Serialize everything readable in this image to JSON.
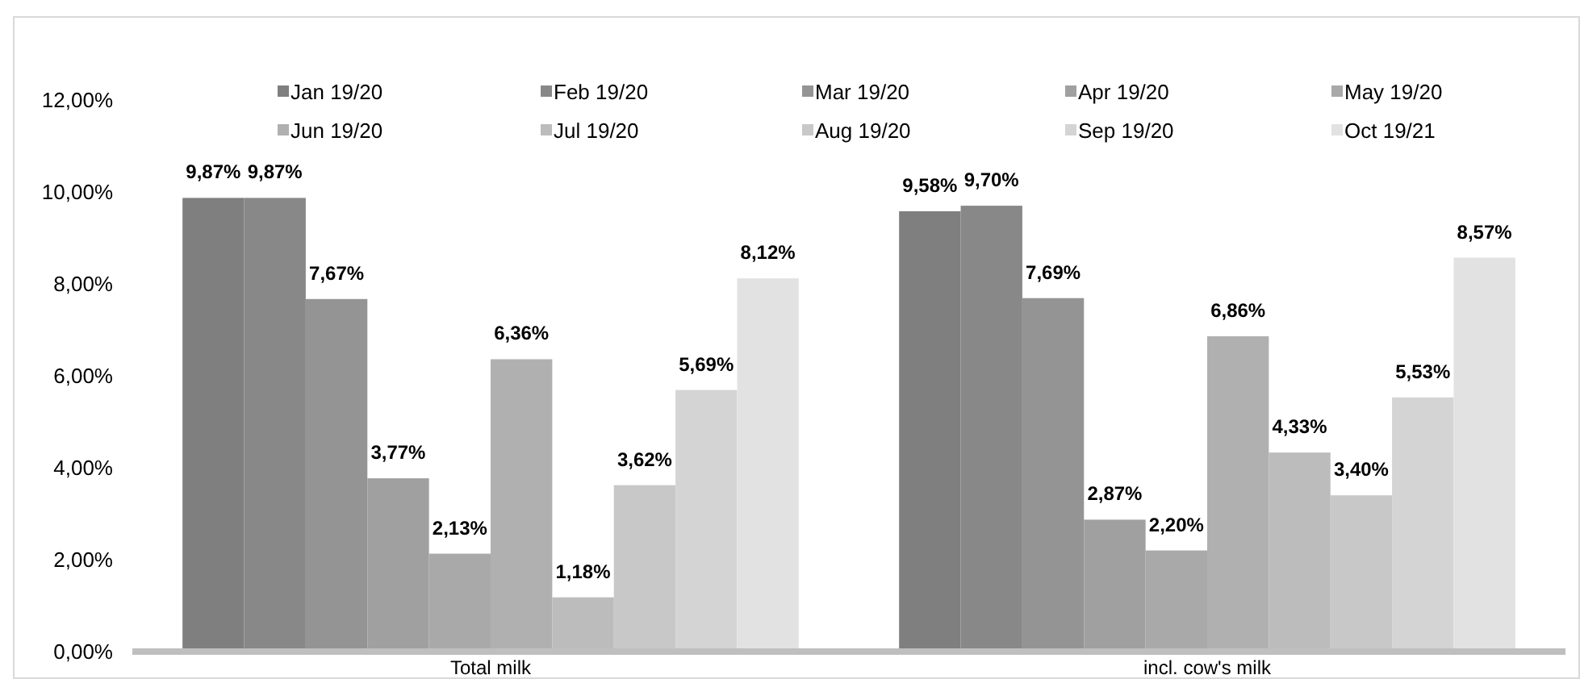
{
  "chart_data": {
    "type": "bar",
    "categories": [
      "Total milk",
      "incl. cow's milk"
    ],
    "series": [
      {
        "name": "Jan 19/20",
        "color": "#7f7f7f",
        "values": [
          9.87,
          9.58
        ],
        "value_labels": [
          "9,87%",
          "9,58%"
        ]
      },
      {
        "name": "Feb 19/20",
        "color": "#888888",
        "values": [
          9.87,
          9.7
        ],
        "value_labels": [
          "9,87%",
          "9,70%"
        ]
      },
      {
        "name": "Mar 19/20",
        "color": "#949494",
        "values": [
          7.67,
          7.69
        ],
        "value_labels": [
          "7,67%",
          "7,69%"
        ]
      },
      {
        "name": "Apr 19/20",
        "color": "#a0a0a0",
        "values": [
          3.77,
          2.87
        ],
        "value_labels": [
          "3,77%",
          "2,87%"
        ]
      },
      {
        "name": "May 19/20",
        "color": "#a9a9a9",
        "values": [
          2.13,
          2.2
        ],
        "value_labels": [
          "2,13%",
          "2,20%"
        ]
      },
      {
        "name": "Jun 19/20",
        "color": "#b0b0b0",
        "values": [
          6.36,
          6.86
        ],
        "value_labels": [
          "6,36%",
          "6,86%"
        ]
      },
      {
        "name": "Jul 19/20",
        "color": "#bcbcbc",
        "values": [
          1.18,
          4.33
        ],
        "value_labels": [
          "1,18%",
          "4,33%"
        ]
      },
      {
        "name": "Aug 19/20",
        "color": "#c8c8c8",
        "values": [
          3.62,
          3.4
        ],
        "value_labels": [
          "3,62%",
          "3,40%"
        ]
      },
      {
        "name": "Sep 19/20",
        "color": "#d4d4d4",
        "values": [
          5.69,
          5.53
        ],
        "value_labels": [
          "5,69%",
          "5,53%"
        ]
      },
      {
        "name": "Oct 19/21",
        "color": "#e2e2e2",
        "values": [
          8.12,
          8.57
        ],
        "value_labels": [
          "8,12%",
          "8,57%"
        ]
      }
    ],
    "ylim": [
      0,
      12
    ],
    "yticks": [
      {
        "value": 0,
        "label": "0,00%"
      },
      {
        "value": 2,
        "label": "2,00%"
      },
      {
        "value": 4,
        "label": "4,00%"
      },
      {
        "value": 6,
        "label": "6,00%"
      },
      {
        "value": 8,
        "label": "8,00%"
      },
      {
        "value": 10,
        "label": "10,00%"
      },
      {
        "value": 12,
        "label": "12,00%"
      }
    ],
    "grid": false,
    "legend": "top"
  }
}
